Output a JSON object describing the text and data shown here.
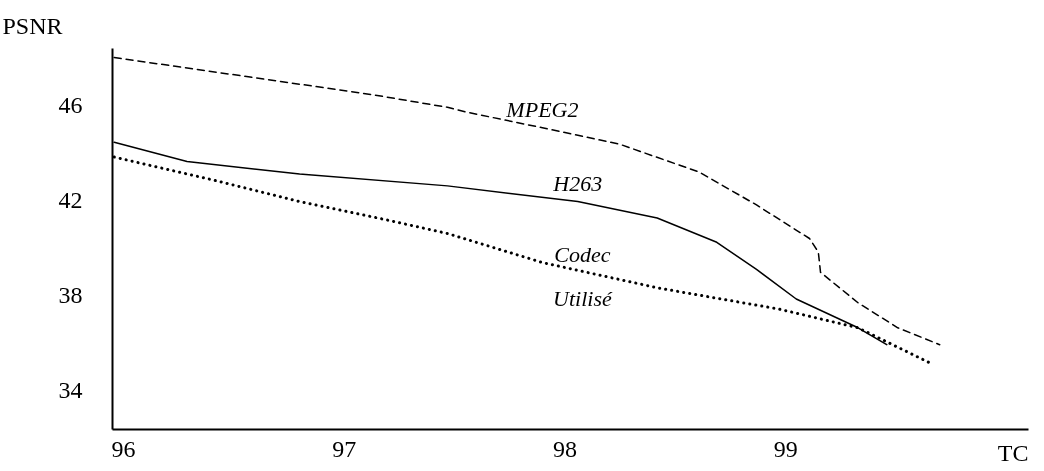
{
  "chart_data": {
    "type": "line",
    "xlabel": "TC",
    "ylabel": "PSNR",
    "xlim": [
      95.95,
      100.1
    ],
    "ylim": [
      32.4,
      48.4
    ],
    "xticks": [
      96,
      97,
      98,
      99
    ],
    "yticks": [
      34,
      38,
      42,
      46
    ],
    "grid": false,
    "legend": false,
    "marker": "none",
    "series": [
      {
        "name": "MPEG2",
        "color": "#000000",
        "line_style": "dashed",
        "x": [
          95.96,
          97.13,
          97.47,
          97.55,
          97.9,
          98.25,
          98.61,
          98.87,
          99.11,
          99.15,
          99.16,
          99.33,
          99.51,
          99.7
        ],
        "values": [
          48.0,
          46.44,
          45.91,
          45.72,
          45.05,
          44.36,
          43.19,
          41.81,
          40.4,
          39.83,
          38.98,
          37.7,
          36.65,
          35.94
        ]
      },
      {
        "name": "H263",
        "color": "#000000",
        "line_style": "solid",
        "x": [
          95.96,
          96.29,
          96.8,
          97.47,
          98.06,
          98.42,
          98.69,
          98.87,
          99.05,
          99.33,
          99.46
        ],
        "values": [
          44.44,
          43.63,
          43.11,
          42.61,
          41.95,
          41.26,
          40.24,
          39.1,
          37.86,
          36.65,
          35.94
        ]
      },
      {
        "name": "Codec Utilisé",
        "color": "#000000",
        "line_style": "dotted",
        "x": [
          95.96,
          96.42,
          96.8,
          97.19,
          97.47,
          97.9,
          98.42,
          98.97,
          99.33,
          99.67
        ],
        "values": [
          43.82,
          42.83,
          41.95,
          41.19,
          40.61,
          39.39,
          38.33,
          37.44,
          36.65,
          35.11
        ]
      }
    ]
  }
}
